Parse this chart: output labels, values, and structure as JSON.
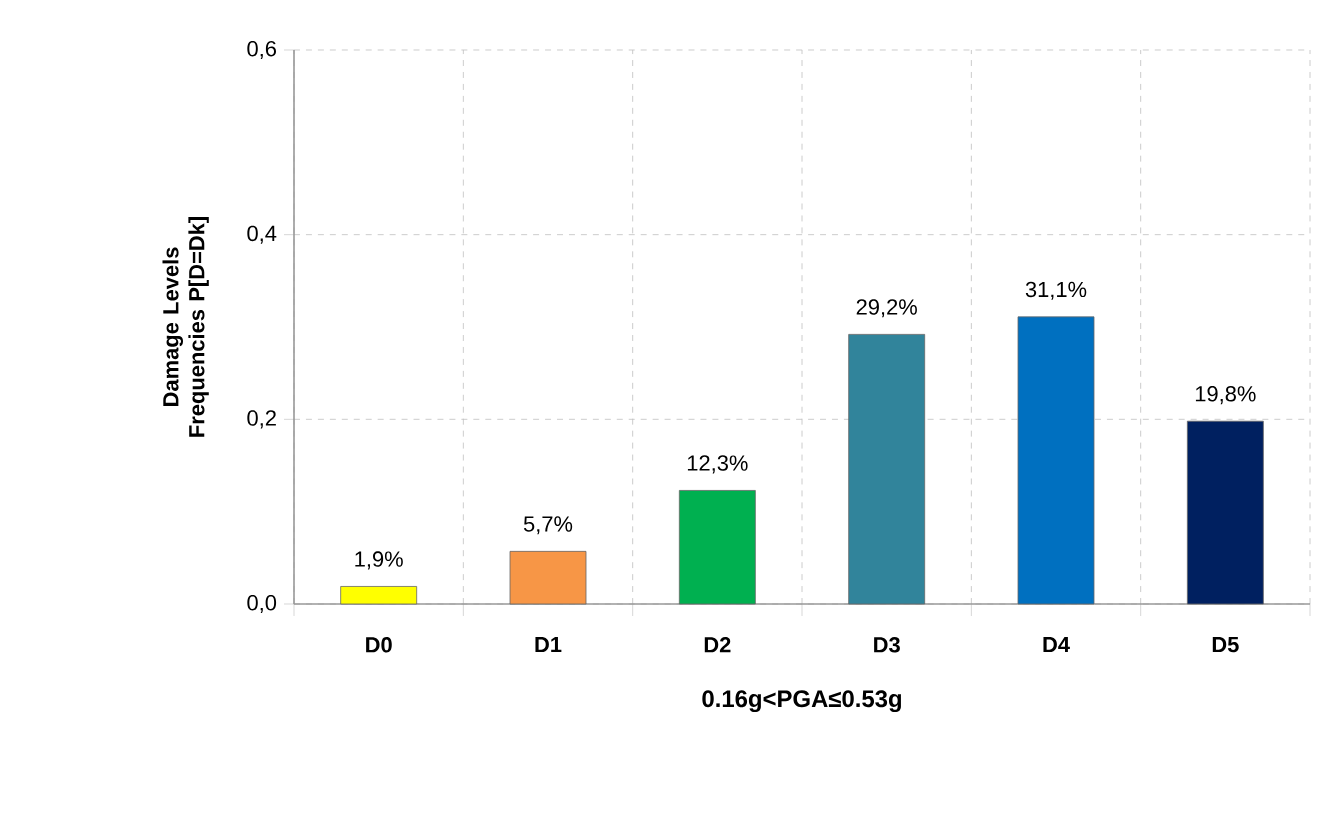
{
  "chart_data": {
    "type": "bar",
    "xlabel": "0.16g<PGA≤0.53g",
    "ylabel": "Damage Levels Frequencies P[D=Dk]",
    "categories": [
      "D0",
      "D1",
      "D2",
      "D3",
      "D4",
      "D5"
    ],
    "values": [
      0.019,
      0.057,
      0.123,
      0.292,
      0.311,
      0.198
    ],
    "colors": [
      "#ffff00",
      "#f79646",
      "#00b050",
      "#31849b",
      "#0070c0",
      "#002060"
    ],
    "value_labels": [
      "1,9%",
      "5,7%",
      "12,3%",
      "29,2%",
      "31,1%",
      "19,8%"
    ],
    "ylim": [
      0,
      0.6
    ],
    "yticks": [
      {
        "value": 0,
        "label": "0,0"
      },
      {
        "value": 0.2,
        "label": "0,2"
      },
      {
        "value": 0.4,
        "label": "0,4"
      },
      {
        "value": 0.6,
        "label": "0,6"
      }
    ],
    "grid": true
  }
}
